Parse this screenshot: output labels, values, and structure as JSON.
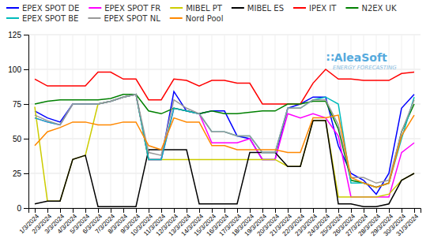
{
  "chart_data": {
    "type": "line",
    "categories": [
      "1/3/2024",
      "2/3/2024",
      "3/3/2024",
      "4/3/2024",
      "5/3/2024",
      "6/3/2024",
      "7/3/2024",
      "8/3/2024",
      "9/3/2024",
      "10/3/2024",
      "11/3/2024",
      "12/3/2024",
      "13/3/2024",
      "14/3/2024",
      "15/3/2024",
      "16/3/2024",
      "17/3/2024",
      "18/3/2024",
      "19/3/2024",
      "20/3/2024",
      "21/3/2024",
      "22/3/2024",
      "23/3/2024",
      "24/3/2024",
      "25/3/2024",
      "26/3/2024",
      "27/3/2024",
      "28/3/2024",
      "29/3/2024",
      "30/3/2024",
      "31/3/2024"
    ],
    "series": [
      {
        "name": "EPEX SPOT DE",
        "color": "#0000ff",
        "values": [
          70,
          65,
          62,
          75,
          75,
          75,
          77,
          80,
          82,
          35,
          35,
          84,
          70,
          68,
          70,
          70,
          52,
          50,
          35,
          35,
          72,
          75,
          80,
          80,
          45,
          25,
          20,
          10,
          25,
          72,
          82
        ]
      },
      {
        "name": "EPEX SPOT FR",
        "color": "#ff00ff",
        "values": [
          65,
          62,
          60,
          75,
          75,
          75,
          77,
          80,
          82,
          35,
          35,
          72,
          70,
          68,
          47,
          47,
          47,
          50,
          35,
          35,
          68,
          65,
          68,
          65,
          52,
          8,
          8,
          8,
          8,
          40,
          47
        ]
      },
      {
        "name": "MIBEL PT",
        "color": "#cccc00",
        "values": [
          73,
          5,
          5,
          35,
          38,
          75,
          77,
          80,
          82,
          35,
          35,
          35,
          35,
          35,
          35,
          35,
          35,
          35,
          35,
          35,
          30,
          30,
          63,
          63,
          8,
          8,
          8,
          8,
          10,
          20,
          25
        ]
      },
      {
        "name": "MIBEL ES",
        "color": "#000000",
        "values": [
          3,
          5,
          5,
          35,
          38,
          1,
          1,
          1,
          1,
          42,
          42,
          42,
          42,
          3,
          3,
          3,
          3,
          40,
          40,
          40,
          30,
          30,
          63,
          63,
          3,
          3,
          1,
          1,
          3,
          20,
          25
        ]
      },
      {
        "name": "IPEX IT",
        "color": "#ff0000",
        "values": [
          93,
          88,
          88,
          88,
          88,
          98,
          98,
          93,
          93,
          78,
          78,
          93,
          92,
          88,
          92,
          92,
          90,
          90,
          75,
          75,
          75,
          75,
          90,
          100,
          93,
          93,
          92,
          92,
          92,
          97,
          98
        ]
      },
      {
        "name": "N2EX UK",
        "color": "#008000",
        "values": [
          75,
          77,
          78,
          78,
          78,
          78,
          79,
          82,
          82,
          70,
          68,
          72,
          70,
          68,
          70,
          68,
          68,
          69,
          70,
          70,
          75,
          75,
          77,
          77,
          57,
          20,
          18,
          15,
          18,
          55,
          75
        ]
      },
      {
        "name": "EPEX SPOT BE",
        "color": "#00bbbb",
        "values": [
          65,
          62,
          60,
          75,
          75,
          75,
          77,
          80,
          82,
          35,
          35,
          72,
          70,
          68,
          55,
          55,
          52,
          52,
          40,
          40,
          72,
          72,
          78,
          80,
          75,
          18,
          18,
          15,
          18,
          50,
          80
        ]
      },
      {
        "name": "EPEX SPOT NL",
        "color": "#999999",
        "values": [
          67,
          63,
          60,
          75,
          75,
          75,
          77,
          80,
          82,
          40,
          38,
          78,
          72,
          68,
          55,
          55,
          52,
          52,
          40,
          40,
          72,
          72,
          78,
          78,
          60,
          22,
          22,
          18,
          20,
          55,
          78
        ]
      },
      {
        "name": "Nord Pool",
        "color": "#ff8800",
        "values": [
          45,
          55,
          58,
          62,
          62,
          60,
          60,
          62,
          62,
          45,
          42,
          65,
          62,
          62,
          45,
          45,
          42,
          42,
          42,
          42,
          40,
          40,
          65,
          65,
          67,
          22,
          18,
          15,
          18,
          52,
          67
        ]
      }
    ],
    "ylim": [
      0,
      125
    ],
    "yticks": [
      0,
      25,
      50,
      75,
      100,
      125
    ],
    "grid": true,
    "legend": "top",
    "annotations": [
      {
        "text": "∷AleaSoft",
        "color": "#55aadd"
      },
      {
        "text": "ENERGY FORECASTING",
        "color": "#88bbdd"
      }
    ]
  }
}
